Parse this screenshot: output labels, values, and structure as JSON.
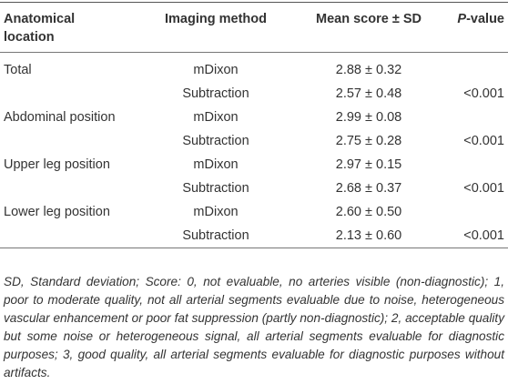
{
  "table": {
    "header": [
      "Anatomical location",
      "Imaging method",
      "Mean score ± SD",
      {
        "italic": "P",
        "text": "-value"
      }
    ],
    "rows": [
      [
        "Total",
        "mDixon",
        "2.88 ± 0.32",
        null
      ],
      [
        null,
        "Subtraction",
        "2.57 ± 0.48",
        "<0.001"
      ],
      [
        "Abdominal position",
        "mDixon",
        "2.99 ± 0.08",
        null
      ],
      [
        null,
        "Subtraction",
        "2.75 ± 0.28",
        "<0.001"
      ],
      [
        "Upper leg position",
        "mDixon",
        "2.97 ± 0.15",
        null
      ],
      [
        null,
        "Subtraction",
        "2.68 ± 0.37",
        "<0.001"
      ],
      [
        "Lower leg position",
        "mDixon",
        "2.60 ± 0.50",
        null
      ],
      [
        null,
        "Subtraction",
        "2.13 ± 0.60",
        "<0.001"
      ]
    ]
  },
  "footnote": "SD, Standard deviation; Score: 0, not evaluable, no arteries visible (non-diagnostic); 1, poor to moderate quality, not all arterial segments evaluable due to noise, heterogeneous vascular enhancement or poor fat suppression (partly non-diagnostic); 2, acceptable quality but some noise or heterogeneous signal, all arterial segments evaluable for diagnostic purposes; 3, good quality, all arterial segments evaluable for diagnostic purposes without artifacts."
}
